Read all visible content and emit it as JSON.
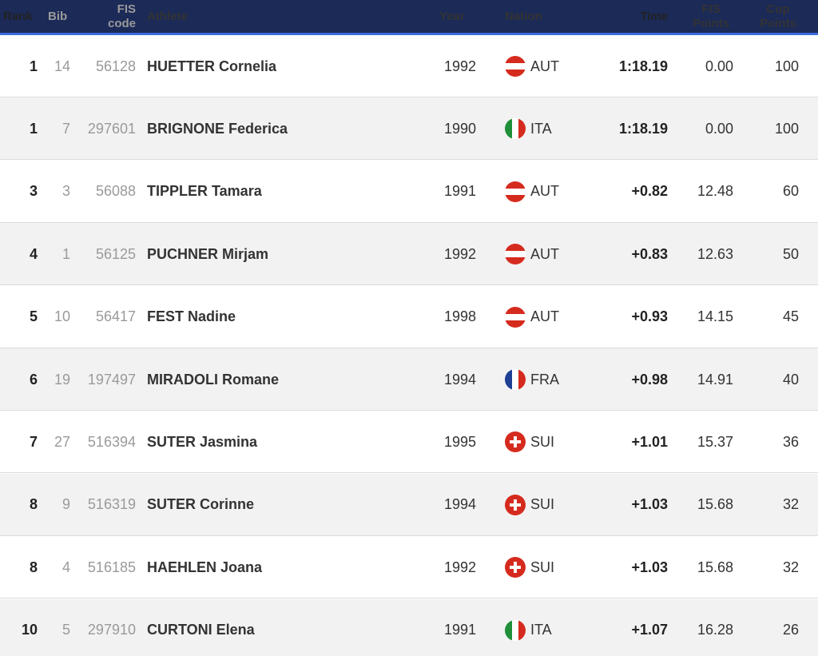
{
  "columns": {
    "rank": "Rank",
    "bib": "Bib",
    "fis_code_1": "FIS",
    "fis_code_2": "code",
    "athlete": "Athlete",
    "year": "Year",
    "nation": "Nation",
    "time": "Time",
    "fis_points_1": "FIS",
    "fis_points_2": "Points",
    "cup_points_1": "Cup",
    "cup_points_2": "Points"
  },
  "colors": {
    "header_bg": "#1b2a57",
    "header_accent": "#3d6bdc",
    "row_alt": "#f2f2f2"
  },
  "rows": [
    {
      "rank": "1",
      "bib": "14",
      "fis_code": "56128",
      "athlete": "HUETTER Cornelia",
      "year": "1992",
      "nation": "AUT",
      "flag": "aut-flag-icon",
      "time": "1:18.19",
      "fis_points": "0.00",
      "cup_points": "100"
    },
    {
      "rank": "1",
      "bib": "7",
      "fis_code": "297601",
      "athlete": "BRIGNONE Federica",
      "year": "1990",
      "nation": "ITA",
      "flag": "ita-flag-icon",
      "time": "1:18.19",
      "fis_points": "0.00",
      "cup_points": "100"
    },
    {
      "rank": "3",
      "bib": "3",
      "fis_code": "56088",
      "athlete": "TIPPLER Tamara",
      "year": "1991",
      "nation": "AUT",
      "flag": "aut-flag-icon",
      "time": "+0.82",
      "fis_points": "12.48",
      "cup_points": "60"
    },
    {
      "rank": "4",
      "bib": "1",
      "fis_code": "56125",
      "athlete": "PUCHNER Mirjam",
      "year": "1992",
      "nation": "AUT",
      "flag": "aut-flag-icon",
      "time": "+0.83",
      "fis_points": "12.63",
      "cup_points": "50"
    },
    {
      "rank": "5",
      "bib": "10",
      "fis_code": "56417",
      "athlete": "FEST Nadine",
      "year": "1998",
      "nation": "AUT",
      "flag": "aut-flag-icon",
      "time": "+0.93",
      "fis_points": "14.15",
      "cup_points": "45"
    },
    {
      "rank": "6",
      "bib": "19",
      "fis_code": "197497",
      "athlete": "MIRADOLI Romane",
      "year": "1994",
      "nation": "FRA",
      "flag": "fra-flag-icon",
      "time": "+0.98",
      "fis_points": "14.91",
      "cup_points": "40"
    },
    {
      "rank": "7",
      "bib": "27",
      "fis_code": "516394",
      "athlete": "SUTER Jasmina",
      "year": "1995",
      "nation": "SUI",
      "flag": "sui-flag-icon",
      "time": "+1.01",
      "fis_points": "15.37",
      "cup_points": "36"
    },
    {
      "rank": "8",
      "bib": "9",
      "fis_code": "516319",
      "athlete": "SUTER Corinne",
      "year": "1994",
      "nation": "SUI",
      "flag": "sui-flag-icon",
      "time": "+1.03",
      "fis_points": "15.68",
      "cup_points": "32"
    },
    {
      "rank": "8",
      "bib": "4",
      "fis_code": "516185",
      "athlete": "HAEHLEN Joana",
      "year": "1992",
      "nation": "SUI",
      "flag": "sui-flag-icon",
      "time": "+1.03",
      "fis_points": "15.68",
      "cup_points": "32"
    },
    {
      "rank": "10",
      "bib": "5",
      "fis_code": "297910",
      "athlete": "CURTONI Elena",
      "year": "1991",
      "nation": "ITA",
      "flag": "ita-flag-icon",
      "time": "+1.07",
      "fis_points": "16.28",
      "cup_points": "26"
    }
  ]
}
